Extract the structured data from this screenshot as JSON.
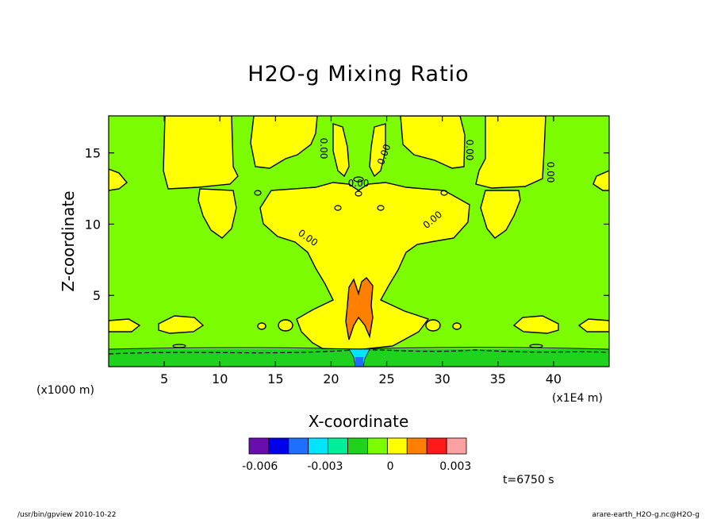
{
  "chart_data": {
    "type": "heatmap",
    "title": "H2O-g Mixing Ratio",
    "xlabel": "X-coordinate",
    "ylabel": "Z-coordinate",
    "x_unit": "(x1E4 m)",
    "y_unit": "(x1000 m)",
    "xlim": [
      0,
      45
    ],
    "ylim": [
      0,
      17.6
    ],
    "xticks": [
      5,
      10,
      15,
      20,
      25,
      30,
      35,
      40
    ],
    "yticks": [
      5,
      10,
      15
    ],
    "time_label": "t=6750 s",
    "contour_labels": [
      "0.00",
      "0.00",
      "0.00",
      "0.00",
      "0.00",
      "0.00",
      "0.00"
    ],
    "colorbar": {
      "colors": [
        "#6a0dad",
        "#0000e6",
        "#1e6eff",
        "#00e5ff",
        "#00ee9a",
        "#1ed21e",
        "#7cfc00",
        "#ffff00",
        "#ff8000",
        "#ff1a1a",
        "#ffa0a0"
      ],
      "tick_labels": [
        "-0.006",
        "-0.003",
        "0",
        "0.003"
      ],
      "tick_values": [
        -0.006,
        -0.003,
        0,
        0.003
      ],
      "range": [
        -0.0065,
        0.0035
      ]
    },
    "fields": {
      "background": {
        "level": "~0 (slightly positive)",
        "color": "#7cfc00"
      },
      "upper_lobes": {
        "level": "~0.001",
        "color": "#ffff00"
      },
      "central_plume": {
        "level": "~0.001",
        "color": "#ffff00"
      },
      "core": {
        "level": "~0.002",
        "color": "#ff8000",
        "x_range": [
          21.2,
          24.2
        ],
        "z_range": [
          2.3,
          6.2
        ]
      },
      "surface_layer": {
        "level": "negative",
        "z_range": [
          0,
          1.3
        ]
      }
    }
  },
  "footer": {
    "left": "/usr/bin/gpview   2010-10-22",
    "right": "arare-earth_H2O-g.nc@H2O-g"
  }
}
